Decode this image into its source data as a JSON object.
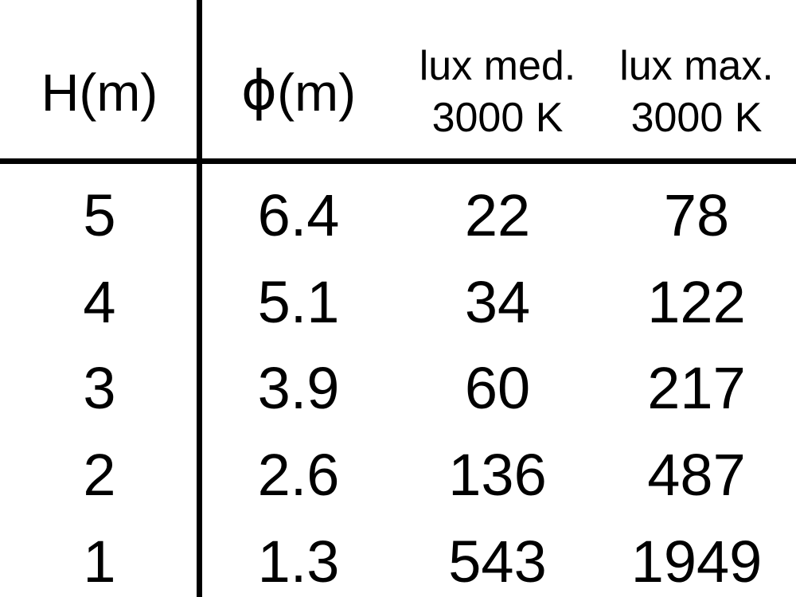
{
  "header": {
    "col1": "H(m)",
    "col2_symbol": "ϕ",
    "col2_suffix": "(m)",
    "col3_line1": "lux med.",
    "col3_line2": "3000 K",
    "col4_line1": "lux max.",
    "col4_line2": "3000 K"
  },
  "chart_data": {
    "type": "table",
    "columns": [
      "H(m)",
      "ϕ(m)",
      "lux med. 3000 K",
      "lux max. 3000 K"
    ],
    "rows": [
      [
        "5",
        "6.4",
        "22",
        "78"
      ],
      [
        "4",
        "5.1",
        "34",
        "122"
      ],
      [
        "3",
        "3.9",
        "60",
        "217"
      ],
      [
        "2",
        "2.6",
        "136",
        "487"
      ],
      [
        "1",
        "1.3",
        "543",
        "1949"
      ]
    ]
  },
  "colors": {
    "text": "#000000",
    "background": "#ffffff",
    "rule": "#000000"
  }
}
